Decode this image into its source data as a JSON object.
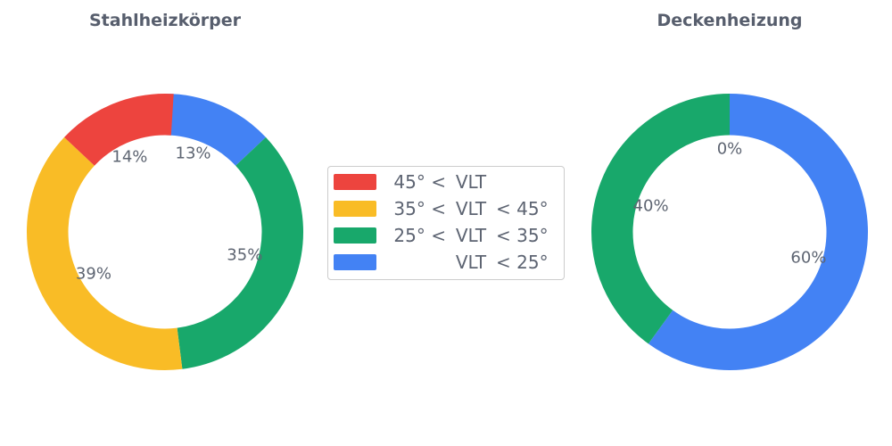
{
  "figure": {
    "background": "#ffffff"
  },
  "text_colors": {
    "title": "#575e6d",
    "pct_label": "#5e6572",
    "legend_text": "#5d6472",
    "legend_border": "#cccccc"
  },
  "legend": {
    "items": [
      {
        "label": "45° < VLT",
        "prefix": "45° <",
        "mid": "VLT",
        "suffix": "",
        "color": "#ed443e"
      },
      {
        "label": "35° < VLT < 45°",
        "prefix": "35° <",
        "mid": "VLT",
        "suffix": "< 45°",
        "color": "#f9bc26"
      },
      {
        "label": "25° < VLT < 35°",
        "prefix": "25° <",
        "mid": "VLT",
        "suffix": "< 35°",
        "color": "#18a86b"
      },
      {
        "label": "VLT < 25°",
        "prefix": "",
        "mid": "VLT",
        "suffix": "< 25°",
        "color": "#4382f4"
      }
    ]
  },
  "chart_data": [
    {
      "type": "pie",
      "subtype": "donut",
      "title": "Stahlheizkörper",
      "categories": [
        "45° < VLT",
        "35° < VLT < 45°",
        "25° < VLT < 35°",
        "VLT < 25°"
      ],
      "values": [
        14,
        39,
        35,
        13
      ],
      "colors": [
        "#ed443e",
        "#f9bc26",
        "#18a86b",
        "#4382f4"
      ],
      "pct_labels": [
        "14%",
        "39%",
        "35%",
        "13%"
      ],
      "start_angle_deg": 90,
      "direction": "counterclockwise",
      "hole_ratio": 0.7,
      "pct_distance": 0.6,
      "legend_position": "center-between-charts"
    },
    {
      "type": "pie",
      "subtype": "donut",
      "title": "Deckenheizung",
      "categories": [
        "45° < VLT",
        "35° < VLT < 45°",
        "25° < VLT < 35°",
        "VLT < 25°"
      ],
      "values": [
        0,
        0,
        40,
        60
      ],
      "colors": [
        "#ed443e",
        "#f9bc26",
        "#18a86b",
        "#4382f4"
      ],
      "pct_labels": [
        "0%",
        "0%",
        "40%",
        "60%"
      ],
      "start_angle_deg": 90,
      "direction": "counterclockwise",
      "hole_ratio": 0.7,
      "pct_distance": 0.6,
      "legend_position": "center-between-charts"
    }
  ]
}
